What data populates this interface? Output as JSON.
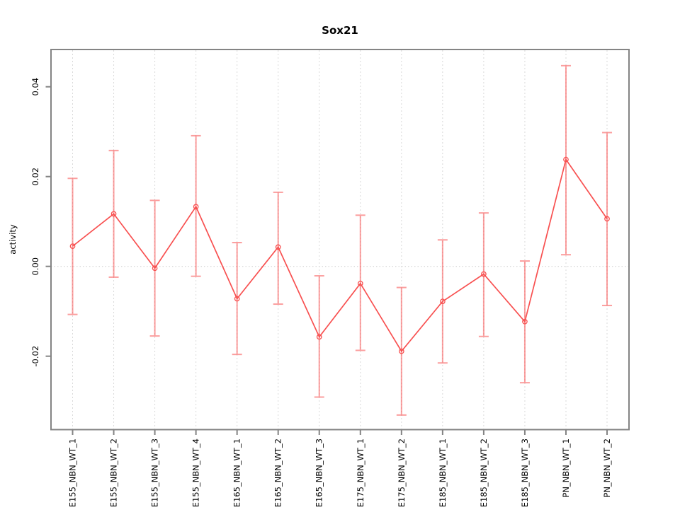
{
  "chart_data": {
    "type": "line",
    "title": "Sox21",
    "xlabel": "",
    "ylabel": "activity",
    "legend_position": "none",
    "grid": {
      "vertical": "dashed light-gray at each category",
      "horizontal": "dotted light-gray at y=0 only"
    },
    "categories": [
      "E155_NBN_WT_1",
      "E155_NBN_WT_2",
      "E155_NBN_WT_3",
      "E155_NBN_WT_4",
      "E165_NBN_WT_1",
      "E165_NBN_WT_2",
      "E165_NBN_WT_3",
      "E175_NBN_WT_1",
      "E175_NBN_WT_2",
      "E185_NBN_WT_1",
      "E185_NBN_WT_2",
      "E185_NBN_WT_3",
      "PN_NBN_WT_1",
      "PN_NBN_WT_2"
    ],
    "series": [
      {
        "name": "activity",
        "marker": "open-circle",
        "values": [
          0.0045,
          0.0117,
          -0.0004,
          0.0133,
          -0.0072,
          0.0043,
          -0.0157,
          -0.0038,
          -0.0189,
          -0.0078,
          -0.0017,
          -0.0123,
          0.0238,
          0.0106
        ],
        "error_low": [
          -0.0107,
          -0.0024,
          -0.0155,
          -0.0022,
          -0.0196,
          -0.0084,
          -0.0291,
          -0.0187,
          -0.0331,
          -0.0215,
          -0.0156,
          -0.0259,
          0.0026,
          -0.0087
        ],
        "error_high": [
          0.0196,
          0.0258,
          0.0147,
          0.0291,
          0.0053,
          0.0165,
          -0.0021,
          0.0114,
          -0.0047,
          0.0059,
          0.0119,
          0.0012,
          0.0447,
          0.0298
        ]
      }
    ],
    "yticks": [
      -0.02,
      0,
      0.02,
      0.04
    ],
    "ytick_labels": [
      "-0.02",
      "0.00",
      "0.02",
      "0.04"
    ],
    "ylim": [
      -0.0363,
      0.0483
    ],
    "colors": {
      "line": "#f85050",
      "marker": "#f85050",
      "error_bar": "#f85050",
      "error_bar_opacity": "0.55",
      "axis_box": "#848484",
      "grid_line": "#d9d9d9",
      "zero_line": "#d4d4d4",
      "text": "#000000",
      "background": "#ffffff"
    }
  }
}
